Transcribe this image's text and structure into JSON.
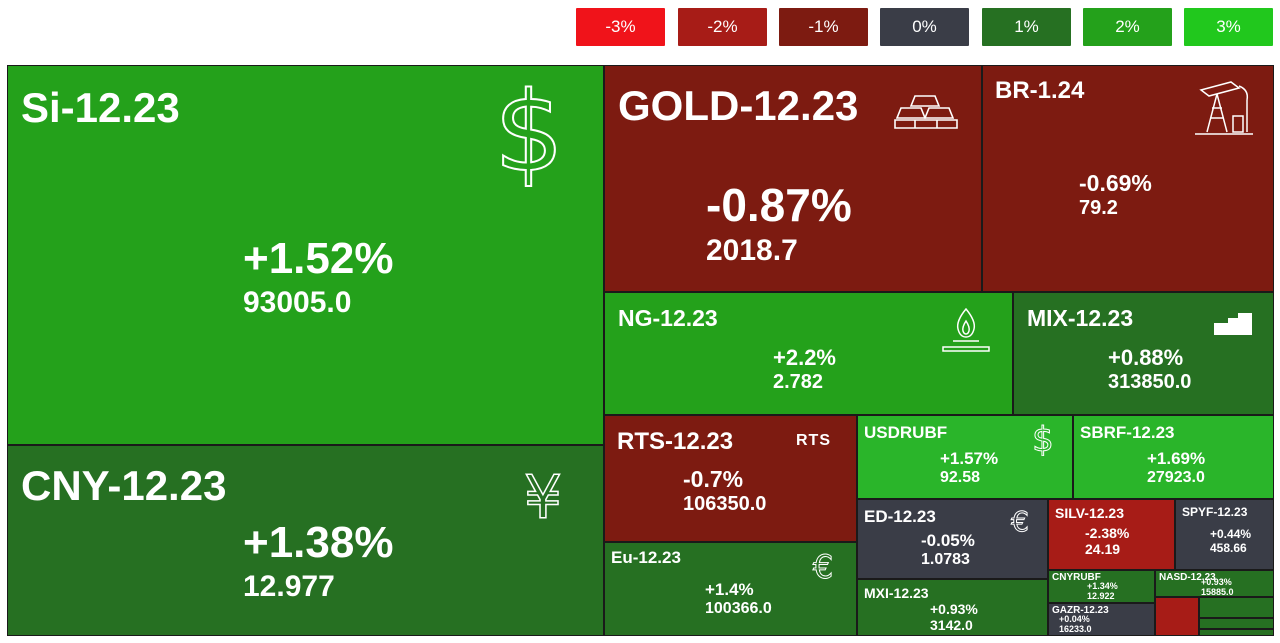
{
  "legend": [
    {
      "label": "-3%",
      "color": "#f0131a"
    },
    {
      "label": "-2%",
      "color": "#a71c17"
    },
    {
      "label": "-1%",
      "color": "#7d1b11"
    },
    {
      "label": "0%",
      "color": "#3a3d47"
    },
    {
      "label": "1%",
      "color": "#267022"
    },
    {
      "label": "2%",
      "color": "#24a11b"
    },
    {
      "label": "3%",
      "color": "#21c81d"
    }
  ],
  "tiles": {
    "si": {
      "name": "Si-12.23",
      "change": "+1.52%",
      "price": "93005.0",
      "icon": "dollar-icon"
    },
    "cny": {
      "name": "CNY-12.23",
      "change": "+1.38%",
      "price": "12.977",
      "icon": "yen-icon"
    },
    "gold": {
      "name": "GOLD-12.23",
      "change": "-0.87%",
      "price": "2018.7",
      "icon": "gold-bars-icon"
    },
    "br": {
      "name": "BR-1.24",
      "change": "-0.69%",
      "price": "79.2",
      "icon": "oil-pump-icon"
    },
    "ng": {
      "name": "NG-12.23",
      "change": "+2.2%",
      "price": "2.782",
      "icon": "gas-flame-icon"
    },
    "mix": {
      "name": "MIX-12.23",
      "change": "+0.88%",
      "price": "313850.0",
      "icon": "index-steps-icon"
    },
    "rts": {
      "name": "RTS-12.23",
      "change": "-0.7%",
      "price": "106350.0",
      "badge": "RTS"
    },
    "usdrubf": {
      "name": "USDRUBF",
      "change": "+1.57%",
      "price": "92.58",
      "icon": "dollar-icon"
    },
    "sbrf": {
      "name": "SBRF-12.23",
      "change": "+1.69%",
      "price": "27923.0"
    },
    "eu": {
      "name": "Eu-12.23",
      "change": "+1.4%",
      "price": "100366.0",
      "icon": "euro-icon"
    },
    "ed": {
      "name": "ED-12.23",
      "change": "-0.05%",
      "price": "1.0783",
      "icon": "euro-icon"
    },
    "silv": {
      "name": "SILV-12.23",
      "change": "-2.38%",
      "price": "24.19"
    },
    "spyf": {
      "name": "SPYF-12.23",
      "change": "+0.44%",
      "price": "458.66"
    },
    "mxi": {
      "name": "MXI-12.23",
      "change": "+0.93%",
      "price": "3142.0"
    },
    "cnyrubf": {
      "name": "CNYRUBF",
      "change": "+1.34%",
      "price": "12.922"
    },
    "nasd": {
      "name": "NASD-12.23",
      "change": "+0.93%",
      "price": "15885.0"
    },
    "gazr": {
      "name": "GAZR-12.23",
      "change": "+0.04%",
      "price": "16233.0"
    }
  }
}
